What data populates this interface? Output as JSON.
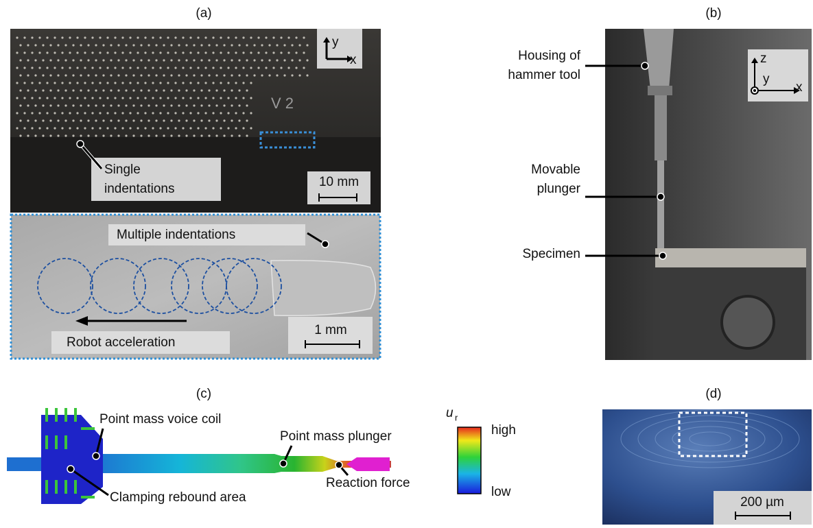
{
  "panels": {
    "a": {
      "label": "(a)",
      "axis_y": "y",
      "axis_x": "x",
      "engraving": "V 2",
      "callout_single": [
        "Single",
        "indentations"
      ],
      "scale_top": "10 mm",
      "callout_multiple": "Multiple indentations",
      "arrow_label": "Robot acceleration",
      "scale_bottom": "1 mm"
    },
    "b": {
      "label": "(b)",
      "axis_z": "z",
      "axis_y": "y",
      "axis_x": "x",
      "callout_housing": [
        "Housing of",
        "hammer tool"
      ],
      "callout_plunger": [
        "Movable",
        "plunger"
      ],
      "callout_specimen": "Specimen"
    },
    "c": {
      "label": "(c)",
      "callout_voice_coil": "Point mass voice coil",
      "callout_clamping": "Clamping rebound area",
      "callout_plunger": "Point mass plunger",
      "callout_reaction": "Reaction force",
      "colorbar": {
        "symbol": "u",
        "subscript": "r",
        "high": "high",
        "low": "low"
      }
    },
    "d": {
      "label": "(d)",
      "scale": "200 µm"
    }
  }
}
